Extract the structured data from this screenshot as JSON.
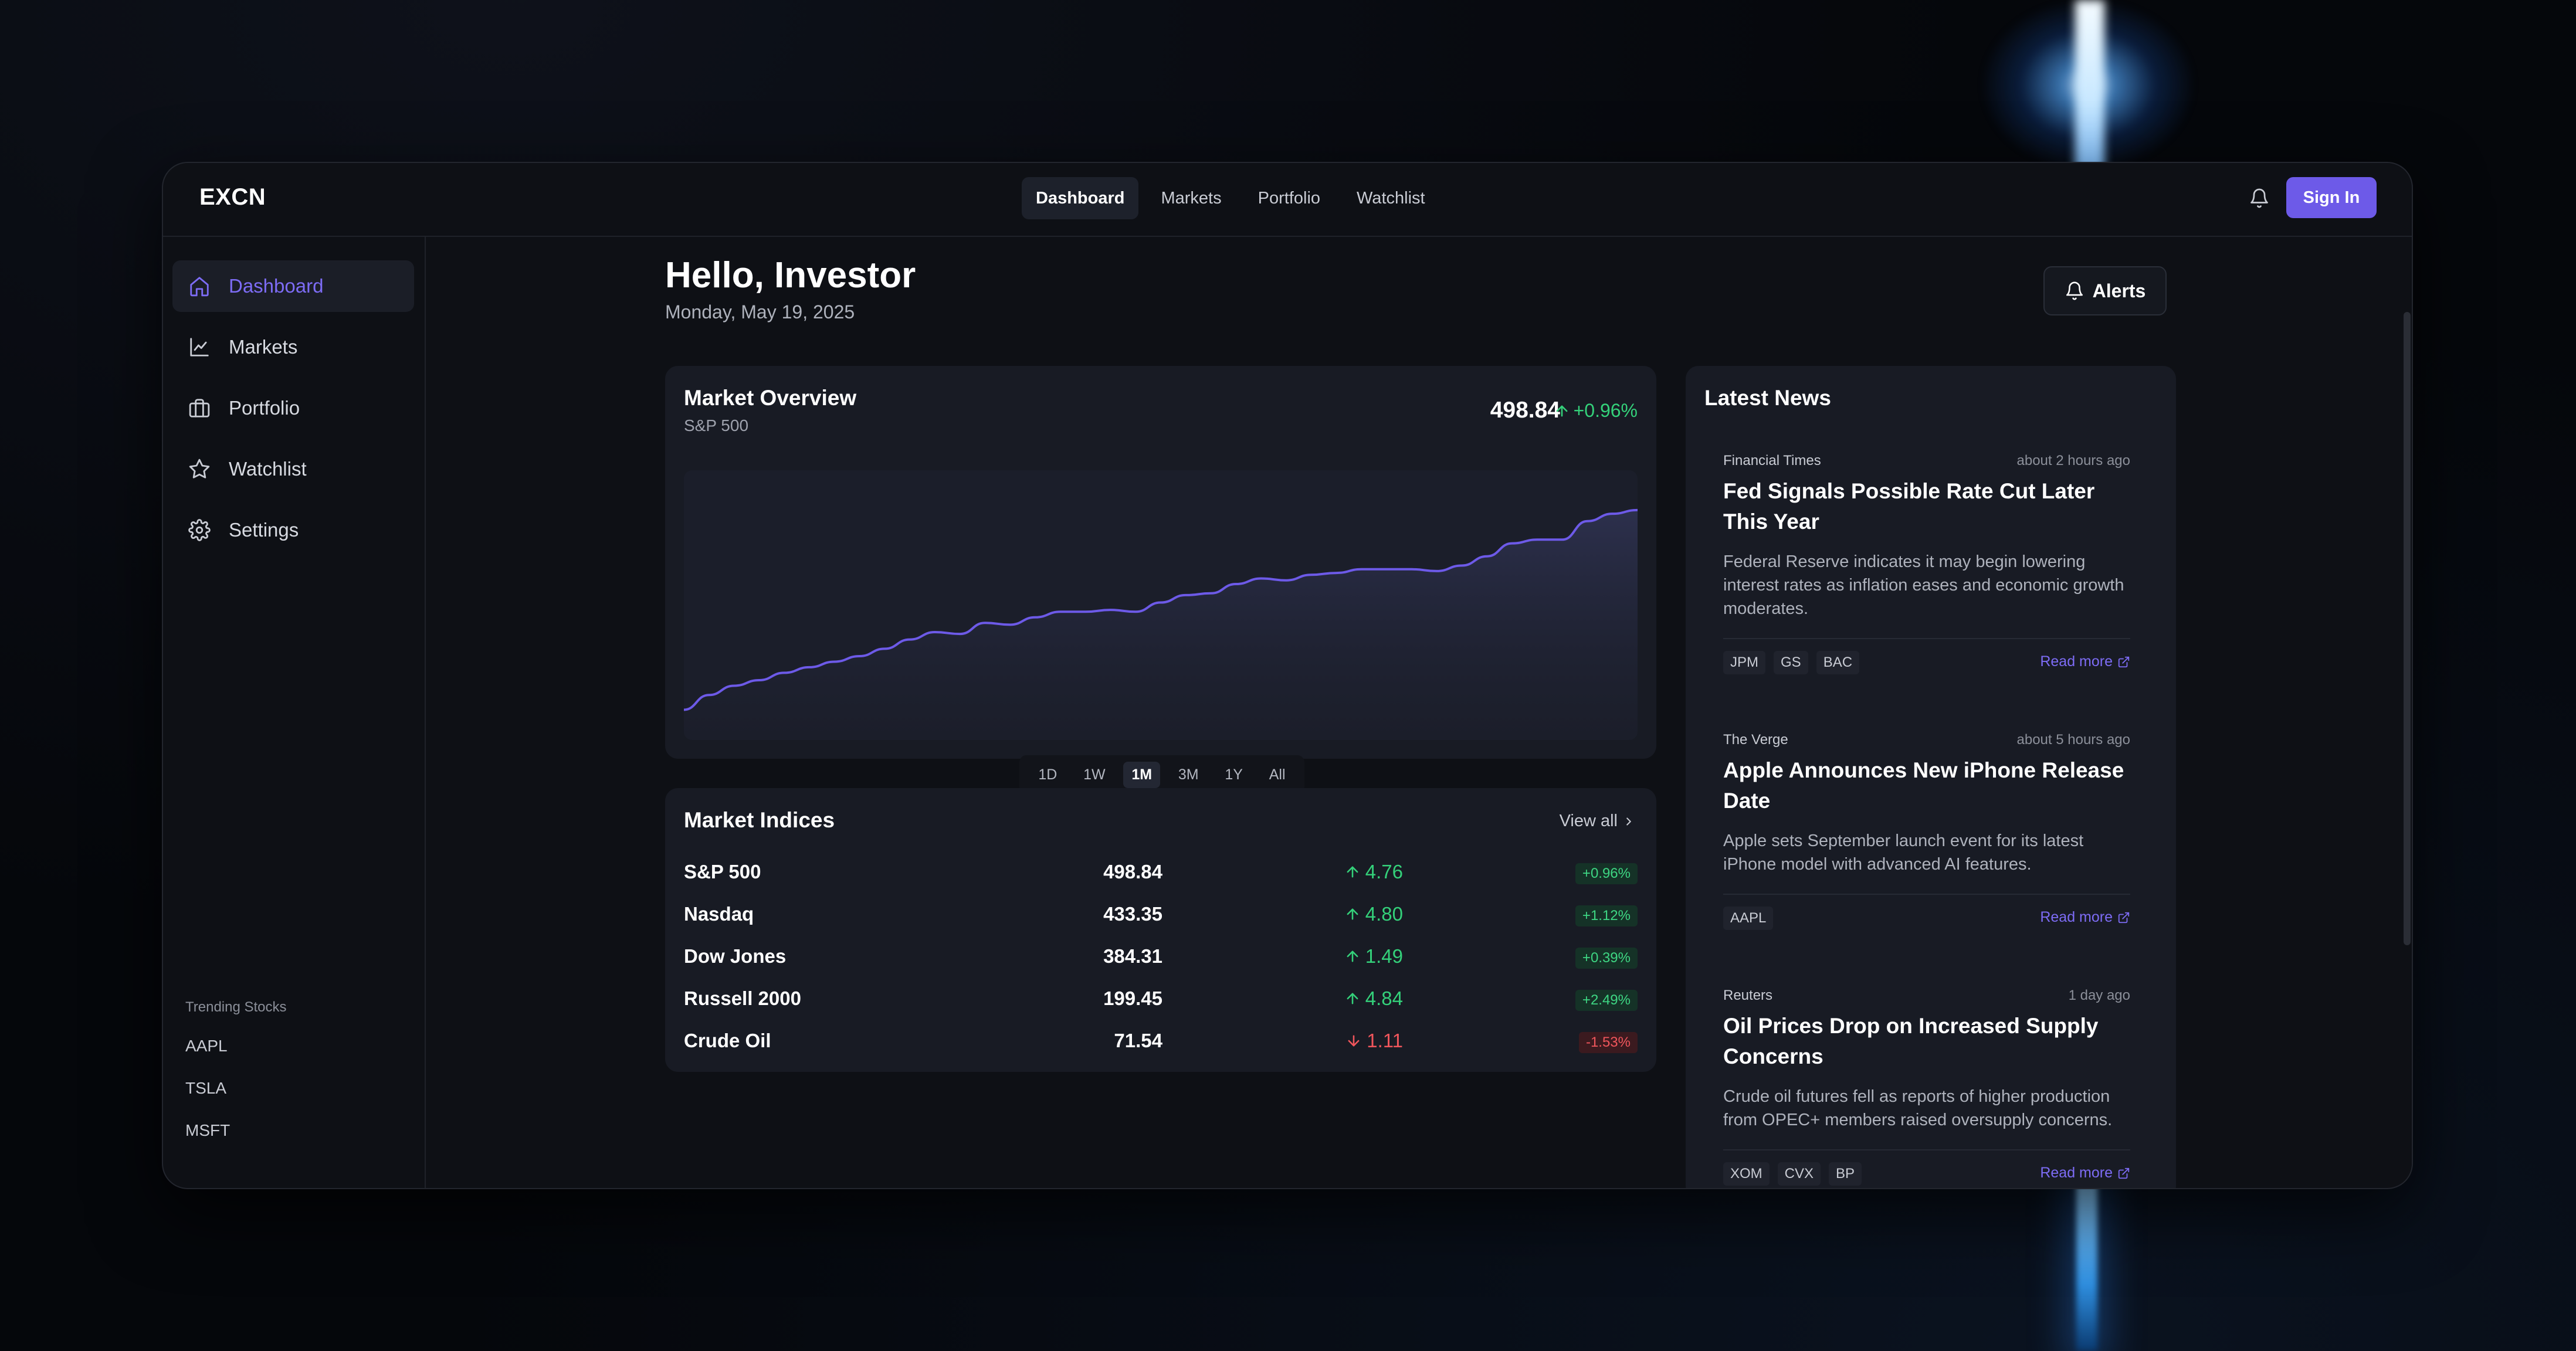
{
  "app": {
    "logo": "EXCN"
  },
  "topnav": {
    "tabs": [
      {
        "label": "Dashboard",
        "active": true
      },
      {
        "label": "Markets",
        "active": false
      },
      {
        "label": "Portfolio",
        "active": false
      },
      {
        "label": "Watchlist",
        "active": false
      }
    ],
    "signin_label": "Sign In",
    "bell_icon": "bell-icon"
  },
  "sidebar": {
    "items": [
      {
        "label": "Dashboard",
        "icon": "home-icon",
        "active": true
      },
      {
        "label": "Markets",
        "icon": "line-chart-icon",
        "active": false
      },
      {
        "label": "Portfolio",
        "icon": "briefcase-icon",
        "active": false
      },
      {
        "label": "Watchlist",
        "icon": "star-icon",
        "active": false
      },
      {
        "label": "Settings",
        "icon": "gear-icon",
        "active": false
      }
    ],
    "trending_title": "Trending Stocks",
    "trending": [
      "AAPL",
      "TSLA",
      "MSFT"
    ]
  },
  "main": {
    "greeting": "Hello, Investor",
    "date": "Monday, May 19, 2025",
    "alerts_label": "Alerts"
  },
  "overview": {
    "title": "Market Overview",
    "subtitle": "S&P 500",
    "price": "498.84",
    "change": "+0.96%",
    "ranges": [
      {
        "label": "1D",
        "active": false
      },
      {
        "label": "1W",
        "active": false
      },
      {
        "label": "1M",
        "active": true
      },
      {
        "label": "3M",
        "active": false
      },
      {
        "label": "1Y",
        "active": false
      },
      {
        "label": "All",
        "active": false
      }
    ]
  },
  "chart_data": {
    "type": "area",
    "title": "Market Overview",
    "subtitle": "S&P 500",
    "xlabel": "",
    "ylabel": "",
    "grid": false,
    "color": "#6d5ae8",
    "values": [
      380,
      388,
      393,
      396,
      400,
      403,
      406,
      409,
      413,
      418,
      422,
      421,
      427,
      426,
      430,
      433,
      433,
      434,
      433,
      438,
      442,
      443,
      448,
      451,
      450,
      453,
      454,
      456,
      456,
      456,
      455,
      458,
      463,
      470,
      472,
      472,
      482,
      486,
      488
    ],
    "ylim": [
      370,
      500
    ]
  },
  "indices": {
    "title": "Market Indices",
    "view_all": "View all",
    "rows": [
      {
        "name": "S&P 500",
        "value": "498.84",
        "change": "4.76",
        "pct": "+0.96%",
        "direction": "up"
      },
      {
        "name": "Nasdaq",
        "value": "433.35",
        "change": "4.80",
        "pct": "+1.12%",
        "direction": "up"
      },
      {
        "name": "Dow Jones",
        "value": "384.31",
        "change": "1.49",
        "pct": "+0.39%",
        "direction": "up"
      },
      {
        "name": "Russell 2000",
        "value": "199.45",
        "change": "4.84",
        "pct": "+2.49%",
        "direction": "up"
      },
      {
        "name": "Crude Oil",
        "value": "71.54",
        "change": "1.11",
        "pct": "-1.53%",
        "direction": "down"
      }
    ]
  },
  "news": {
    "title": "Latest News",
    "read_more": "Read more",
    "items": [
      {
        "source": "Financial Times",
        "time": "about 2 hours ago",
        "headline": "Fed Signals Possible Rate Cut Later This Year",
        "description": "Federal Reserve indicates it may begin lowering interest rates as inflation eases and economic growth moderates.",
        "tags": [
          "JPM",
          "GS",
          "BAC"
        ]
      },
      {
        "source": "The Verge",
        "time": "about 5 hours ago",
        "headline": "Apple Announces New iPhone Release Date",
        "description": "Apple sets September launch event for its latest iPhone model with advanced AI features.",
        "tags": [
          "AAPL"
        ]
      },
      {
        "source": "Reuters",
        "time": "1 day ago",
        "headline": "Oil Prices Drop on Increased Supply Concerns",
        "description": "Crude oil futures fell as reports of higher production from OPEC+ members raised oversupply concerns.",
        "tags": [
          "XOM",
          "CVX",
          "BP"
        ]
      }
    ]
  },
  "colors": {
    "accent": "#6d5ae8",
    "positive": "#34d17a",
    "negative": "#f0565c",
    "background": "#0e1015",
    "card": "#181b24"
  }
}
